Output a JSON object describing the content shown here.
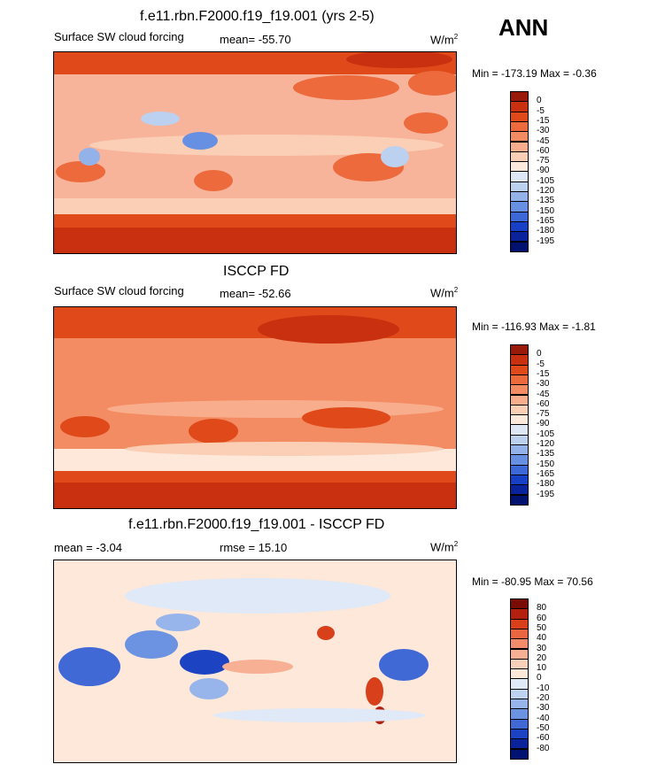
{
  "season": "ANN",
  "panels": [
    {
      "title": "f.e11.rbn.F2000.f19_f19.001 (yrs 2-5)",
      "left_label": "Surface SW cloud forcing",
      "center_label": "mean= -55.70",
      "units": "W/m",
      "units_exp": "2",
      "minmax": "Min = -173.19 Max =  -0.36",
      "levels": [
        "0",
        "-5",
        "-15",
        "-30",
        "-45",
        "-60",
        "-75",
        "-90",
        "-105",
        "-120",
        "-135",
        "-150",
        "-165",
        "-180",
        "-195"
      ],
      "colors": [
        "#9a1a0a",
        "#c8300f",
        "#e04a1a",
        "#ec6a3c",
        "#f38c62",
        "#f8ad8c",
        "#fbcfb6",
        "#fdeadc",
        "#dde7f6",
        "#bcd0f0",
        "#93b2ea",
        "#6890e2",
        "#3d69d8",
        "#1740c6",
        "#0a229c",
        "#001170"
      ],
      "base_color": "#f7b49a"
    },
    {
      "title": "ISCCP FD",
      "left_label": "Surface SW cloud forcing",
      "center_label": "mean= -52.66",
      "units": "W/m",
      "units_exp": "2",
      "minmax": "Min = -116.93 Max =  -1.81",
      "levels": [
        "0",
        "-5",
        "-15",
        "-30",
        "-45",
        "-60",
        "-75",
        "-90",
        "-105",
        "-120",
        "-135",
        "-150",
        "-165",
        "-180",
        "-195"
      ],
      "colors": [
        "#9a1a0a",
        "#c8300f",
        "#e04a1a",
        "#ec6a3c",
        "#f38c62",
        "#f8ad8c",
        "#fbcfb6",
        "#fdeadc",
        "#dde7f6",
        "#bcd0f0",
        "#93b2ea",
        "#6890e2",
        "#3d69d8",
        "#1740c6",
        "#0a229c",
        "#001170"
      ],
      "base_color": "#f6a98a"
    },
    {
      "title": "f.e11.rbn.F2000.f19_f19.001 - ISCCP FD",
      "left_label": "mean =  -3.04",
      "center_label": "rmse =  15.10",
      "units": "W/m",
      "units_exp": "2",
      "minmax": "Min = -80.95 Max =  70.56",
      "levels": [
        "80",
        "60",
        "50",
        "40",
        "30",
        "20",
        "10",
        "0",
        "-10",
        "-20",
        "-30",
        "-40",
        "-50",
        "-60",
        "-80"
      ],
      "colors": [
        "#7a0c06",
        "#b42010",
        "#d8401c",
        "#ea6640",
        "#f38c6a",
        "#f8b094",
        "#fbd0ba",
        "#fde8da",
        "#dfe9f7",
        "#bed2f1",
        "#97b5ea",
        "#6c92e2",
        "#4169d6",
        "#1b43c2",
        "#0a239a",
        "#001272"
      ],
      "base_color": "#fce3d4"
    }
  ]
}
